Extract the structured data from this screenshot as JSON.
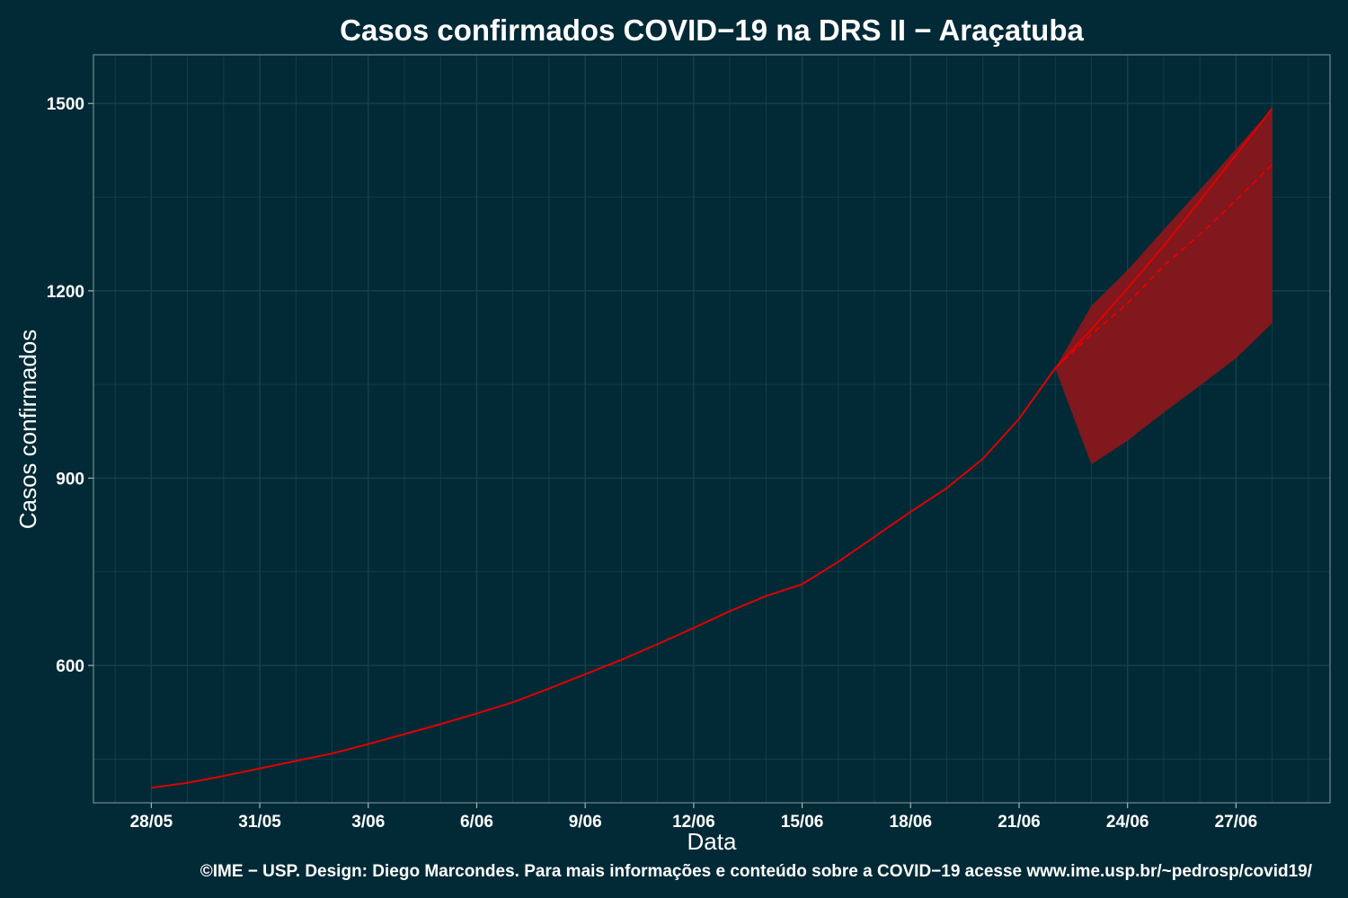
{
  "chart_data": {
    "type": "line",
    "title": "Casos confirmados COVID−19 na DRS II − Araçatuba",
    "xlabel": "Data",
    "ylabel": "Casos confirmados",
    "caption": "©IME − USP. Design: Diego Marcondes. Para mais informações e conteúdo sobre a COVID−19 acesse www.ime.usp.br/~pedrosp/covid19/",
    "x_ticks": [
      "28/05",
      "31/05",
      "3/06",
      "6/06",
      "9/06",
      "12/06",
      "15/06",
      "18/06",
      "21/06",
      "24/06",
      "27/06"
    ],
    "y_ticks": [
      600,
      900,
      1200,
      1500
    ],
    "ylim": [
      380,
      1578
    ],
    "grid": true,
    "colors": {
      "background": "#022a36",
      "grid": "#18404b",
      "line": "#e00000",
      "band": "#8b171b"
    },
    "series": [
      {
        "style": "solid",
        "x": [
          "28/05",
          "29/05",
          "30/05",
          "31/05",
          "1/06",
          "2/06",
          "3/06",
          "4/06",
          "5/06",
          "6/06",
          "7/06",
          "8/06",
          "9/06",
          "10/06",
          "11/06",
          "12/06",
          "13/06",
          "14/06",
          "15/06",
          "16/06",
          "17/06",
          "18/06",
          "19/06",
          "20/06",
          "21/06",
          "22/06",
          "23/06",
          "24/06",
          "25/06",
          "26/06",
          "27/06",
          "28/06"
        ],
        "values": [
          404,
          412,
          423,
          435,
          447,
          459,
          474,
          490,
          506,
          523,
          541,
          563,
          586,
          609,
          634,
          660,
          687,
          711,
          730,
          766,
          806,
          846,
          884,
          931,
          995,
          1076,
          1138,
          1204,
          1272,
          1344,
          1418,
          1492
        ]
      },
      {
        "style": "dashed",
        "x": [
          "22/06",
          "23/06",
          "24/06",
          "25/06",
          "26/06",
          "27/06",
          "28/06"
        ],
        "values": [
          1076,
          1130,
          1180,
          1240,
          1290,
          1345,
          1402
        ]
      }
    ],
    "interval": {
      "x": [
        "22/06",
        "23/06",
        "24/06",
        "25/06",
        "26/06",
        "27/06",
        "28/06"
      ],
      "lower": [
        1076,
        922,
        960,
        1005,
        1048,
        1092,
        1148
      ],
      "upper": [
        1076,
        1176,
        1233,
        1298,
        1362,
        1427,
        1492
      ]
    }
  }
}
